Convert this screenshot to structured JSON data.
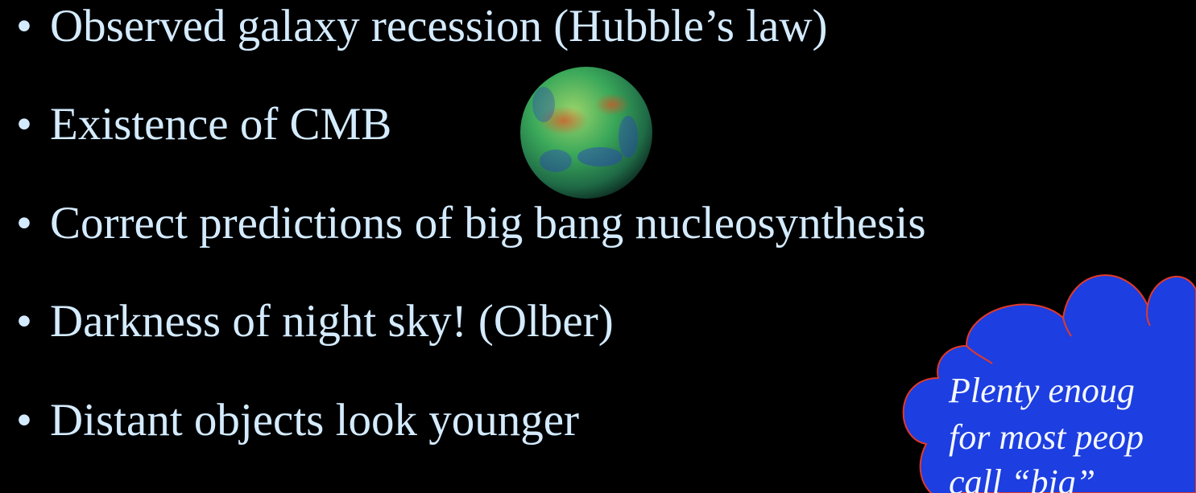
{
  "slide": {
    "bullets": [
      "Observed galaxy recession (Hubble’s law)",
      "Existence of CMB",
      "Correct predictions of big bang nucleosynthesis",
      "Darkness of night sky! (Olber)",
      "Distant objects look younger"
    ],
    "bullet_symbol": "•",
    "callout": {
      "lines": [
        "Plenty enoug",
        "for most peop",
        "call “big”"
      ]
    }
  }
}
